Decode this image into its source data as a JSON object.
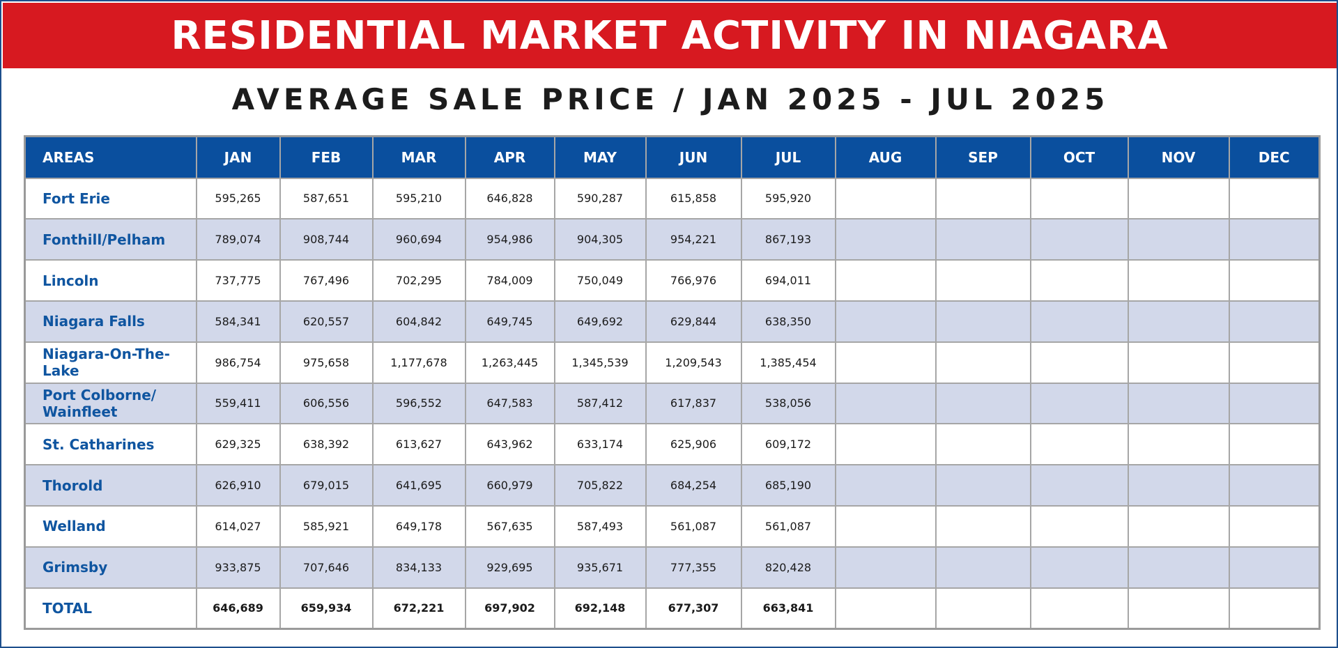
{
  "title": "RESIDENTIAL MARKET ACTIVITY IN NIAGARA",
  "subtitle": "AVERAGE SALE PRICE / JAN 2025 - JUL 2025",
  "table": {
    "headers": [
      "AREAS",
      "JAN",
      "FEB",
      "MAR",
      "APR",
      "MAY",
      "JUN",
      "JUL",
      "AUG",
      "SEP",
      "OCT",
      "NOV",
      "DEC"
    ],
    "rows": [
      {
        "area": "Fort Erie",
        "values": [
          "595,265",
          "587,651",
          "595,210",
          "646,828",
          "590,287",
          "615,858",
          "595,920",
          "",
          "",
          "",
          "",
          ""
        ]
      },
      {
        "area": "Fonthill/Pelham",
        "values": [
          "789,074",
          "908,744",
          "960,694",
          "954,986",
          "904,305",
          "954,221",
          "867,193",
          "",
          "",
          "",
          "",
          ""
        ]
      },
      {
        "area": "Lincoln",
        "values": [
          "737,775",
          "767,496",
          "702,295",
          "784,009",
          "750,049",
          "766,976",
          "694,011",
          "",
          "",
          "",
          "",
          ""
        ]
      },
      {
        "area": "Niagara Falls",
        "values": [
          "584,341",
          "620,557",
          "604,842",
          "649,745",
          "649,692",
          "629,844",
          "638,350",
          "",
          "",
          "",
          "",
          ""
        ]
      },
      {
        "area": "Niagara-On-The-Lake",
        "values": [
          "986,754",
          "975,658",
          "1,177,678",
          "1,263,445",
          "1,345,539",
          "1,209,543",
          "1,385,454",
          "",
          "",
          "",
          "",
          ""
        ]
      },
      {
        "area": "Port Colborne/ Wainfleet",
        "values": [
          "559,411",
          "606,556",
          "596,552",
          "647,583",
          "587,412",
          "617,837",
          "538,056",
          "",
          "",
          "",
          "",
          ""
        ]
      },
      {
        "area": "St. Catharines",
        "values": [
          "629,325",
          "638,392",
          "613,627",
          "643,962",
          "633,174",
          "625,906",
          "609,172",
          "",
          "",
          "",
          "",
          ""
        ]
      },
      {
        "area": "Thorold",
        "values": [
          "626,910",
          "679,015",
          "641,695",
          "660,979",
          "705,822",
          "684,254",
          "685,190",
          "",
          "",
          "",
          "",
          ""
        ]
      },
      {
        "area": "Welland",
        "values": [
          "614,027",
          "585,921",
          "649,178",
          "567,635",
          "587,493",
          "561,087",
          "561,087",
          "",
          "",
          "",
          "",
          ""
        ]
      },
      {
        "area": "Grimsby",
        "values": [
          "933,875",
          "707,646",
          "834,133",
          "929,695",
          "935,671",
          "777,355",
          "820,428",
          "",
          "",
          "",
          "",
          ""
        ]
      }
    ],
    "total": {
      "area": "TOTAL",
      "values": [
        "646,689",
        "659,934",
        "672,221",
        "697,902",
        "692,148",
        "677,307",
        "663,841",
        "",
        "",
        "",
        "",
        ""
      ]
    }
  },
  "colors": {
    "banner": "#d71920",
    "header": "#0a4f9e",
    "area_text": "#0f55a0",
    "alt_row": "#d2d8ea",
    "frame": "#1d4f8c"
  }
}
